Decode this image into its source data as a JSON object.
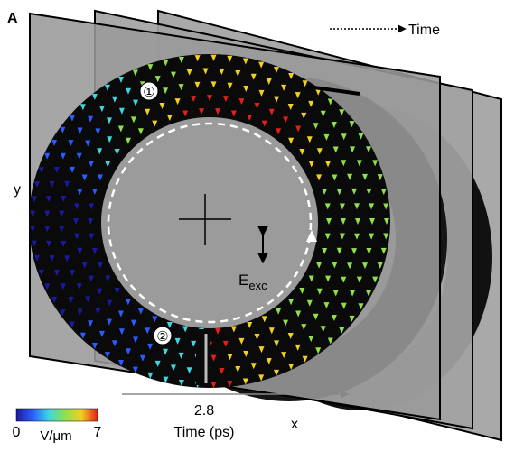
{
  "panel_label": "A",
  "time_arrow_label": "Time",
  "y_label": "y",
  "x_label": "x",
  "field_label": {
    "main": "E",
    "sub": "exc"
  },
  "markers": [
    "①",
    "②"
  ],
  "time_value": 2.8,
  "time_label": "Time (ps)",
  "colorbar": {
    "min": 0,
    "max": 7,
    "unit": "V/μm"
  }
}
